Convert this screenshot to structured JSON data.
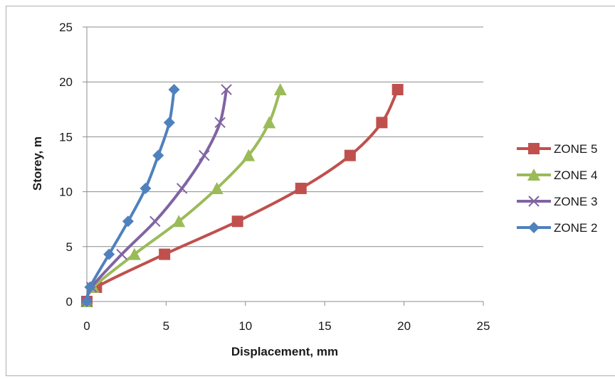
{
  "chart_data": {
    "type": "line",
    "title": "",
    "xlabel": "Displacement, mm",
    "ylabel": "Storey, m",
    "xlim": [
      0,
      25
    ],
    "ylim": [
      0,
      25
    ],
    "x_ticks": [
      "0",
      "5",
      "10",
      "15",
      "20",
      "25"
    ],
    "y_ticks": [
      "0",
      "5",
      "10",
      "15",
      "20",
      "25"
    ],
    "grid": "horizontal",
    "legend_position": "right",
    "series": [
      {
        "name": "ZONE 5",
        "color": "#c0504d",
        "marker": "square",
        "x": [
          0,
          0.6,
          4.9,
          9.5,
          13.5,
          16.6,
          18.6,
          19.6
        ],
        "y": [
          0,
          1.3,
          4.3,
          7.3,
          10.3,
          13.3,
          16.3,
          19.3
        ]
      },
      {
        "name": "ZONE 4",
        "color": "#9bbb59",
        "marker": "triangle",
        "x": [
          0,
          0.4,
          3.0,
          5.8,
          8.2,
          10.2,
          11.5,
          12.2
        ],
        "y": [
          0,
          1.3,
          4.3,
          7.3,
          10.3,
          13.3,
          16.3,
          19.3
        ]
      },
      {
        "name": "ZONE 3",
        "color": "#8064a2",
        "marker": "x",
        "x": [
          0,
          0.3,
          2.2,
          4.3,
          6.0,
          7.4,
          8.4,
          8.8
        ],
        "y": [
          0,
          1.3,
          4.3,
          7.3,
          10.3,
          13.3,
          16.3,
          19.3
        ]
      },
      {
        "name": "ZONE 2",
        "color": "#4f81bd",
        "marker": "diamond",
        "x": [
          0,
          0.2,
          1.4,
          2.6,
          3.7,
          4.5,
          5.2,
          5.5
        ],
        "y": [
          0,
          1.3,
          4.3,
          7.3,
          10.3,
          13.3,
          16.3,
          19.3
        ]
      }
    ]
  }
}
